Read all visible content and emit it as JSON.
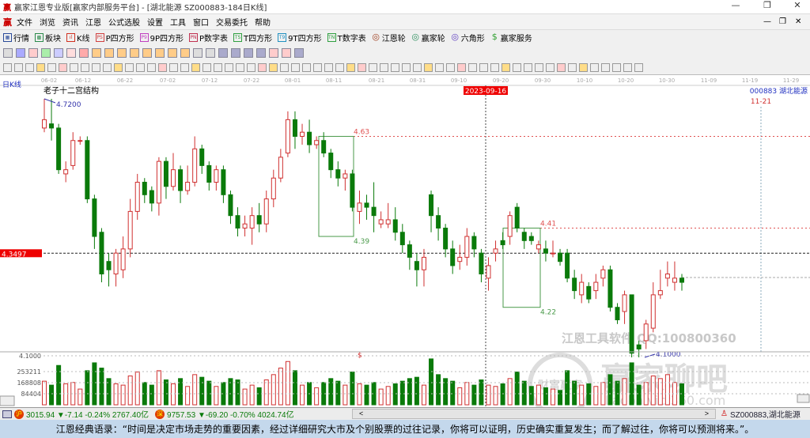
{
  "window": {
    "title": "赢家江恩专业版[赢家内部服务平台] - [湖北能源  SZ000883-184日K线]",
    "controls": [
      "—",
      "❐",
      "✕"
    ]
  },
  "menu": {
    "items": [
      "文件",
      "浏览",
      "资讯",
      "江恩",
      "公式选股",
      "设置",
      "工具",
      "窗口",
      "交易委托",
      "帮助"
    ],
    "win_controls": [
      "—",
      "❐",
      "✕"
    ]
  },
  "toolbar": {
    "items": [
      {
        "label": "行情",
        "icon": "quote-grid-icon",
        "color": "#2a4a9a",
        "glyph": "▦"
      },
      {
        "label": "板块",
        "icon": "sector-icon",
        "color": "#2a8a4a",
        "glyph": "▩"
      },
      {
        "label": "K线",
        "icon": "kline-icon",
        "color": "#d03020",
        "glyph": "ıl"
      },
      {
        "label": "P四方形",
        "icon": "p-square-icon",
        "color": "#d04040",
        "glyph": "PS"
      },
      {
        "label": "9P四方形",
        "icon": "9p-square-icon",
        "color": "#c040c0",
        "glyph": "P9"
      },
      {
        "label": "P数字表",
        "icon": "p-table-icon",
        "color": "#c03050",
        "glyph": "PN"
      },
      {
        "label": "T四方形",
        "icon": "t-square-icon",
        "color": "#30a040",
        "glyph": "TS"
      },
      {
        "label": "9T四方形",
        "icon": "9t-square-icon",
        "color": "#2090c0",
        "glyph": "T9"
      },
      {
        "label": "T数字表",
        "icon": "t-table-icon",
        "color": "#30a040",
        "glyph": "TN"
      },
      {
        "label": "江恩轮",
        "icon": "gann-wheel-icon",
        "color": "#a04020",
        "glyph": "◎"
      },
      {
        "label": "赢家轮",
        "icon": "winner-wheel-icon",
        "color": "#309060",
        "glyph": "◎"
      },
      {
        "label": "六角形",
        "icon": "hexagon-icon",
        "color": "#6040c0",
        "glyph": "◎"
      },
      {
        "label": "赢家服务",
        "icon": "dollar-icon",
        "color": "#30a030",
        "glyph": "$"
      }
    ]
  },
  "chart": {
    "period_label": "日K线",
    "indicator_title": "老子十二宫结构",
    "stock_label": "000883  湖北能源",
    "cursor_date": "11-21",
    "highlight_date": "2023-09-16",
    "crosshair_price": "4.3497",
    "high_label": "4.7200",
    "low_label": "4.1000",
    "box1": {
      "top": "4.63",
      "bottom": "4.39"
    },
    "box2": {
      "top": "4.41",
      "bottom": "4.22"
    },
    "dates": [
      "06-02",
      "06-12",
      "06-22",
      "07-02",
      "07-12",
      "07-22",
      "08-01",
      "08-11",
      "08-21",
      "08-31",
      "09-10",
      "09-20",
      "09-30",
      "10-10",
      "10-20",
      "10-30",
      "11-09",
      "11-19",
      "11-29"
    ],
    "volume_axis": [
      "4.1000",
      "253211",
      "168808",
      "84404"
    ],
    "marker": "$",
    "watermark": {
      "line1": "江恩工具软件  QQ:100800360",
      "line2": "赢家聊吧",
      "seal": "财富赢家",
      "url": "liaoba.vict360.com"
    },
    "colors": {
      "up": "#d03030",
      "down": "#0a7a0a",
      "box": "#4a9a4a",
      "level": "#e05050"
    }
  },
  "chart_data": {
    "type": "candlestick",
    "ylim": [
      4.1,
      4.72
    ],
    "columns": [
      "open",
      "close",
      "high",
      "low",
      "volume"
    ],
    "candles": [
      [
        4.65,
        4.67,
        4.72,
        4.64,
        180000
      ],
      [
        4.66,
        4.65,
        4.72,
        4.62,
        150000
      ],
      [
        4.65,
        4.55,
        4.66,
        4.54,
        300000
      ],
      [
        4.54,
        4.55,
        4.57,
        4.52,
        160000
      ],
      [
        4.56,
        4.62,
        4.64,
        4.55,
        170000
      ],
      [
        4.62,
        4.62,
        4.63,
        4.61,
        120000
      ],
      [
        4.62,
        4.48,
        4.63,
        4.47,
        260000
      ],
      [
        4.48,
        4.39,
        4.49,
        4.36,
        320000
      ],
      [
        4.4,
        4.3,
        4.41,
        4.28,
        280000
      ],
      [
        4.33,
        4.31,
        4.35,
        4.27,
        200000
      ],
      [
        4.3,
        4.35,
        4.36,
        4.27,
        160000
      ],
      [
        4.31,
        4.36,
        4.39,
        4.29,
        150000
      ],
      [
        4.36,
        4.45,
        4.48,
        4.34,
        220000
      ],
      [
        4.45,
        4.52,
        4.54,
        4.43,
        250000
      ],
      [
        4.52,
        4.49,
        4.53,
        4.47,
        170000
      ],
      [
        4.5,
        4.47,
        4.51,
        4.45,
        150000
      ],
      [
        4.47,
        4.57,
        4.58,
        4.44,
        260000
      ],
      [
        4.57,
        4.51,
        4.58,
        4.48,
        190000
      ],
      [
        4.51,
        4.55,
        4.59,
        4.5,
        160000
      ],
      [
        4.55,
        4.5,
        4.56,
        4.47,
        200000
      ],
      [
        4.5,
        4.52,
        4.56,
        4.49,
        140000
      ],
      [
        4.52,
        4.6,
        4.63,
        4.51,
        230000
      ],
      [
        4.6,
        4.56,
        4.61,
        4.54,
        210000
      ],
      [
        4.56,
        4.52,
        4.57,
        4.5,
        180000
      ],
      [
        4.52,
        4.55,
        4.56,
        4.5,
        140000
      ],
      [
        4.55,
        4.49,
        4.56,
        4.47,
        170000
      ],
      [
        4.49,
        4.44,
        4.5,
        4.42,
        200000
      ],
      [
        4.44,
        4.41,
        4.46,
        4.39,
        190000
      ],
      [
        4.41,
        4.42,
        4.44,
        4.39,
        120000
      ],
      [
        4.41,
        4.44,
        4.46,
        4.37,
        150000
      ],
      [
        4.44,
        4.42,
        4.47,
        4.4,
        130000
      ],
      [
        4.42,
        4.48,
        4.5,
        4.4,
        190000
      ],
      [
        4.48,
        4.53,
        4.55,
        4.46,
        230000
      ],
      [
        4.53,
        4.58,
        4.6,
        4.52,
        280000
      ],
      [
        4.59,
        4.67,
        4.69,
        4.58,
        330000
      ],
      [
        4.67,
        4.63,
        4.69,
        4.6,
        260000
      ],
      [
        4.63,
        4.64,
        4.66,
        4.61,
        150000
      ],
      [
        4.64,
        4.61,
        4.67,
        4.59,
        170000
      ],
      [
        4.61,
        4.62,
        4.63,
        4.6,
        130000
      ],
      [
        4.62,
        4.59,
        4.64,
        4.58,
        170000
      ],
      [
        4.59,
        4.55,
        4.6,
        4.53,
        200000
      ],
      [
        4.55,
        4.53,
        4.57,
        4.51,
        180000
      ],
      [
        4.53,
        4.54,
        4.55,
        4.5,
        150000
      ],
      [
        4.54,
        4.46,
        4.55,
        4.45,
        250000
      ],
      [
        4.45,
        4.47,
        4.5,
        4.42,
        160000
      ],
      [
        4.47,
        4.46,
        4.49,
        4.43,
        150000
      ],
      [
        4.46,
        4.44,
        4.52,
        4.4,
        170000
      ],
      [
        4.42,
        4.43,
        4.45,
        4.41,
        120000
      ],
      [
        4.42,
        4.43,
        4.47,
        4.41,
        140000
      ],
      [
        4.43,
        4.4,
        4.46,
        4.38,
        160000
      ],
      [
        4.4,
        4.37,
        4.42,
        4.35,
        180000
      ],
      [
        4.37,
        4.34,
        4.38,
        4.31,
        200000
      ],
      [
        4.33,
        4.31,
        4.35,
        4.27,
        210000
      ],
      [
        4.31,
        4.34,
        4.36,
        4.27,
        150000
      ],
      [
        4.49,
        4.44,
        4.5,
        4.4,
        350000
      ],
      [
        4.44,
        4.41,
        4.46,
        4.38,
        230000
      ],
      [
        4.41,
        4.36,
        4.42,
        4.34,
        200000
      ],
      [
        4.36,
        4.32,
        4.38,
        4.3,
        180000
      ],
      [
        4.33,
        4.34,
        4.37,
        4.31,
        130000
      ],
      [
        4.34,
        4.39,
        4.41,
        4.32,
        170000
      ],
      [
        4.39,
        4.36,
        4.4,
        4.34,
        150000
      ],
      [
        4.35,
        4.3,
        4.36,
        4.28,
        190000
      ],
      [
        4.29,
        4.32,
        4.34,
        4.26,
        150000
      ],
      [
        4.35,
        4.36,
        4.38,
        4.33,
        140000
      ],
      [
        4.38,
        4.37,
        4.4,
        4.36,
        160000
      ],
      [
        4.39,
        4.44,
        4.45,
        4.37,
        200000
      ],
      [
        4.46,
        4.41,
        4.47,
        4.4,
        250000
      ],
      [
        4.4,
        4.38,
        4.41,
        4.36,
        180000
      ],
      [
        4.39,
        4.38,
        4.4,
        4.37,
        140000
      ],
      [
        4.36,
        4.37,
        4.38,
        4.35,
        150000
      ],
      [
        4.36,
        4.35,
        4.38,
        4.33,
        130000
      ],
      [
        4.35,
        4.35,
        4.38,
        4.34,
        120000
      ],
      [
        4.35,
        4.33,
        4.36,
        4.32,
        110000
      ],
      [
        4.35,
        4.29,
        4.36,
        4.28,
        260000
      ],
      [
        4.29,
        4.26,
        4.31,
        4.24,
        180000
      ],
      [
        4.25,
        4.28,
        4.3,
        4.23,
        150000
      ],
      [
        4.27,
        4.24,
        4.28,
        4.23,
        160000
      ],
      [
        4.26,
        4.28,
        4.3,
        4.24,
        140000
      ],
      [
        4.29,
        4.31,
        4.32,
        4.27,
        170000
      ],
      [
        4.31,
        4.22,
        4.32,
        4.21,
        230000
      ],
      [
        4.22,
        4.19,
        4.23,
        4.18,
        180000
      ],
      [
        4.21,
        4.25,
        4.26,
        4.18,
        200000
      ],
      [
        4.25,
        4.11,
        4.25,
        4.1,
        320000
      ],
      [
        4.13,
        4.12,
        4.14,
        4.1,
        150000
      ],
      [
        4.14,
        4.18,
        4.19,
        4.12,
        170000
      ],
      [
        4.17,
        4.25,
        4.28,
        4.16,
        220000
      ],
      [
        4.25,
        4.26,
        4.31,
        4.24,
        200000
      ],
      [
        4.29,
        4.3,
        4.33,
        4.27,
        230000
      ],
      [
        4.28,
        4.29,
        4.33,
        4.26,
        170000
      ],
      [
        4.29,
        4.28,
        4.3,
        4.26,
        160000
      ]
    ]
  },
  "statusbar": {
    "sh_icon": "沪",
    "sh_text": "3015.94 ▼-7.14 -0.24% 2767.40亿",
    "sz_icon": "深",
    "sz_text": "9757.53 ▼-69.20 -0.70% 4024.74亿",
    "stock": "SZ000883,湖北能源",
    "scroll_left": "<",
    "scroll_right": ">"
  },
  "quote": "江恩经典语录：“时间是决定市场走势的重要因素，经过详细研究大市及个别股票的过往记录，你将可以证明，历史确实重复发生；而了解过往，你将可以预测将来。”。"
}
